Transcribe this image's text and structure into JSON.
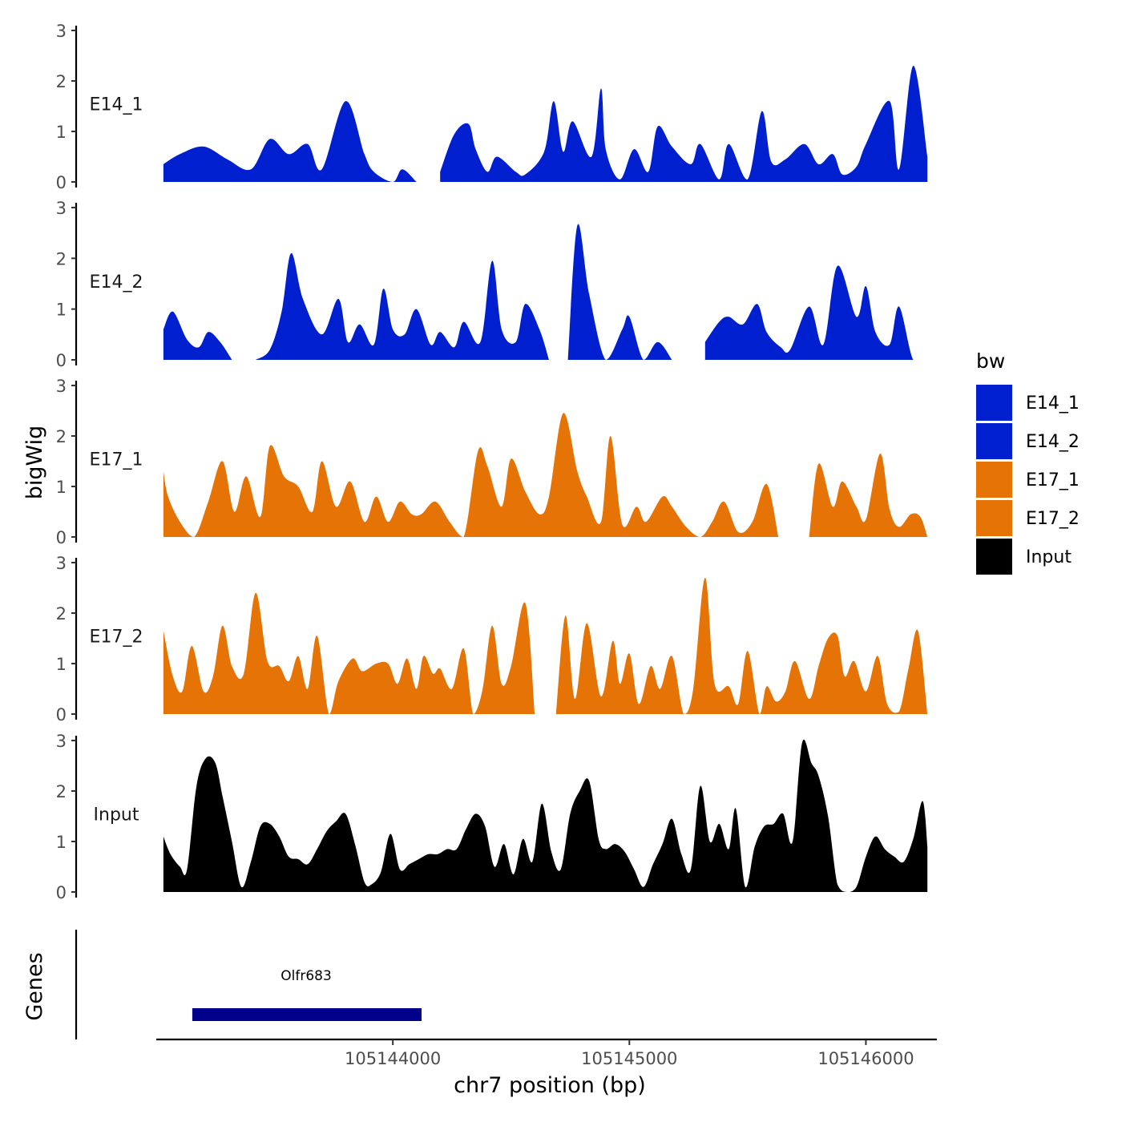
{
  "chart_data": {
    "type": "area",
    "xlabel": "chr7 position (bp)",
    "ylabel": "bigWig",
    "genes_label": "Genes",
    "xlim": [
      105143000,
      105146300
    ],
    "x_ticks": [
      105144000,
      105145000,
      105146000
    ],
    "x_tick_labels": [
      "105144000",
      "105145000",
      "105146000"
    ],
    "ylim": [
      0,
      3
    ],
    "y_ticks": [
      0,
      1,
      2,
      3
    ],
    "y_tick_labels": [
      "0",
      "1",
      "2",
      "3"
    ],
    "legend": {
      "title": "bw",
      "position": "right",
      "entries": [
        {
          "label": "E14_1",
          "color": "#0020D0"
        },
        {
          "label": "E14_2",
          "color": "#0020D0"
        },
        {
          "label": "E17_1",
          "color": "#E67305"
        },
        {
          "label": "E17_2",
          "color": "#E67305"
        },
        {
          "label": "Input",
          "color": "#000000"
        }
      ]
    },
    "series": [
      {
        "name": "E14_1",
        "color": "#0020D0",
        "x": [
          105143030,
          105143100,
          105143200,
          105143300,
          105143400,
          105143480,
          105143560,
          105143640,
          105143700,
          105143800,
          105143880,
          105143920,
          105144000,
          105144040,
          105144100,
          105144160,
          105144200,
          105144260,
          105144320,
          105144350,
          105144400,
          105144440,
          105144520,
          105144560,
          105144640,
          105144680,
          105144720,
          105144760,
          105144840,
          105144880,
          105144900,
          105144960,
          105145020,
          105145080,
          105145120,
          105145180,
          105145260,
          105145300,
          105145380,
          105145420,
          105145500,
          105145560,
          105145600,
          105145660,
          105145740,
          105145800,
          105145860,
          105145900,
          105145960,
          105146000,
          105146100,
          105146140,
          105146200,
          105146260
        ],
        "y": [
          0.35,
          0.55,
          0.7,
          0.45,
          0.25,
          0.85,
          0.55,
          0.75,
          0.25,
          1.6,
          0.55,
          0.2,
          0.0,
          0.25,
          0.0,
          null,
          0.2,
          0.95,
          1.15,
          0.65,
          0.2,
          0.5,
          0.2,
          0.15,
          0.6,
          1.6,
          0.6,
          1.2,
          0.5,
          1.85,
          0.65,
          0.05,
          0.65,
          0.2,
          1.1,
          0.7,
          0.35,
          0.75,
          0.05,
          0.75,
          0.05,
          1.4,
          0.4,
          0.45,
          0.75,
          0.35,
          0.55,
          0.15,
          0.3,
          0.75,
          1.6,
          0.25,
          2.3,
          0.5
        ],
        "y_end": [
          null,
          null,
          null,
          null,
          null,
          null,
          null,
          null,
          null,
          null,
          null,
          null,
          null,
          null,
          null,
          null,
          null,
          null,
          null,
          null,
          null,
          null,
          null,
          null,
          null,
          null,
          null,
          null,
          null,
          null,
          null,
          null,
          null,
          null,
          null,
          null,
          null,
          null,
          null,
          null,
          null,
          null,
          null,
          null,
          null,
          null,
          null,
          null,
          null,
          null,
          null,
          null,
          null,
          null
        ]
      },
      {
        "name": "E14_2",
        "color": "#0020D0",
        "x": [
          105143030,
          105143070,
          105143130,
          105143180,
          105143220,
          105143270,
          105143320,
          105143370,
          105143420,
          105143480,
          105143530,
          105143570,
          105143620,
          105143700,
          105143770,
          105143810,
          105143860,
          105143920,
          105143960,
          105144000,
          105144050,
          105144100,
          105144160,
          105144200,
          105144260,
          105144300,
          105144370,
          105144420,
          105144460,
          105144520,
          105144560,
          105144620,
          105144660,
          105144700,
          105144740,
          105144780,
          105144830,
          105144900,
          105144970,
          105145000,
          105145060,
          105145120,
          105145180,
          105145260,
          105145320,
          105145380,
          105145420,
          105145480,
          105145540,
          105145580,
          105145640,
          105145680,
          105145760,
          105145820,
          105145880,
          105145960,
          105146000,
          105146040,
          105146100,
          105146140,
          105146200,
          105146260
        ],
        "y": [
          0.6,
          0.95,
          0.4,
          0.25,
          0.55,
          0.35,
          0.0,
          null,
          0.0,
          0.2,
          0.95,
          2.1,
          1.2,
          0.5,
          1.2,
          0.35,
          0.7,
          0.3,
          1.4,
          0.6,
          0.5,
          1.0,
          0.3,
          0.55,
          0.25,
          0.75,
          0.35,
          1.95,
          0.6,
          0.35,
          1.1,
          0.6,
          0.0,
          null,
          0.0,
          2.65,
          1.3,
          0.0,
          0.6,
          0.85,
          0.0,
          0.35,
          0.0,
          null,
          0.35,
          0.75,
          0.85,
          0.7,
          1.1,
          0.55,
          0.25,
          0.2,
          1.05,
          0.3,
          1.85,
          0.85,
          1.45,
          0.55,
          0.3,
          1.05,
          0.0,
          0.0
        ],
        "y_end": null
      },
      {
        "name": "E17_1",
        "color": "#E67305",
        "x": [
          105143030,
          105143050,
          105143100,
          105143160,
          105143220,
          105143280,
          105143330,
          105143380,
          105143440,
          105143480,
          105143540,
          105143600,
          105143660,
          105143700,
          105143760,
          105143820,
          105143880,
          105143930,
          105143980,
          105144030,
          105144080,
          105144120,
          105144180,
          105144240,
          105144300,
          105144360,
          105144400,
          105144460,
          105144500,
          105144560,
          105144620,
          105144660,
          105144720,
          105144780,
          105144820,
          105144880,
          105144920,
          105144970,
          105145030,
          105145070,
          105145140,
          105145180,
          105145240,
          105145300,
          105145350,
          105145400,
          105145460,
          105145520,
          105145580,
          105145630,
          105145690,
          105145760,
          105145800,
          105145860,
          105145900,
          105145960,
          105146000,
          105146060,
          105146100,
          105146140,
          105146190,
          105146230,
          105146260
        ],
        "y": [
          1.3,
          0.8,
          0.3,
          0.0,
          0.7,
          1.5,
          0.5,
          1.2,
          0.4,
          1.8,
          1.2,
          1.0,
          0.5,
          1.5,
          0.6,
          1.1,
          0.3,
          0.8,
          0.3,
          0.7,
          0.45,
          0.45,
          0.7,
          0.3,
          0.0,
          1.7,
          1.4,
          0.6,
          1.55,
          0.9,
          0.45,
          0.8,
          2.45,
          1.3,
          0.8,
          0.3,
          2.0,
          0.25,
          0.6,
          0.3,
          0.8,
          0.6,
          0.2,
          0.0,
          0.3,
          0.7,
          0.1,
          0.3,
          1.05,
          0.0,
          null,
          0.0,
          1.45,
          0.6,
          1.1,
          0.6,
          0.35,
          1.65,
          0.55,
          0.2,
          0.45,
          0.4,
          0.0
        ],
        "y_end": null
      }
    ]
  }
}
